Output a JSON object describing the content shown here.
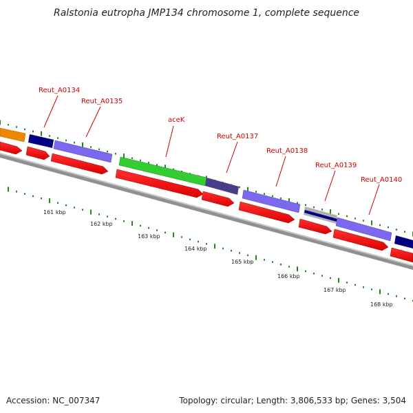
{
  "title": "Ralstonia eutropha JMP134 chromosome 1, complete sequence",
  "footer": {
    "accession": "Accession: NC_007347",
    "summary": "Topology: circular; Length: 3,806,533 bp; Genes: 3,504"
  },
  "gene_labels": [
    {
      "name": "Reut_A0134"
    },
    {
      "name": "Reut_A0135"
    },
    {
      "name": "aceK"
    },
    {
      "name": "Reut_A0137"
    },
    {
      "name": "Reut_A0138"
    },
    {
      "name": "Reut_A0139"
    },
    {
      "name": "Reut_A0140"
    }
  ],
  "kbp_labels": [
    "161 kbp",
    "162 kbp",
    "163 kbp",
    "164 kbp",
    "165 kbp",
    "166 kbp",
    "167 kbp",
    "168 kbp"
  ],
  "colors": {
    "cds": "#ee0000",
    "gene_orange": "#ee8800",
    "gene_navy": "#000080",
    "gene_violet": "#7b68ee",
    "gene_green": "#33cc33",
    "gene_slate": "#483d8b",
    "gene_gray": "#b0b0b0",
    "tick": "#1a8a1a",
    "backbone": "#808080"
  }
}
